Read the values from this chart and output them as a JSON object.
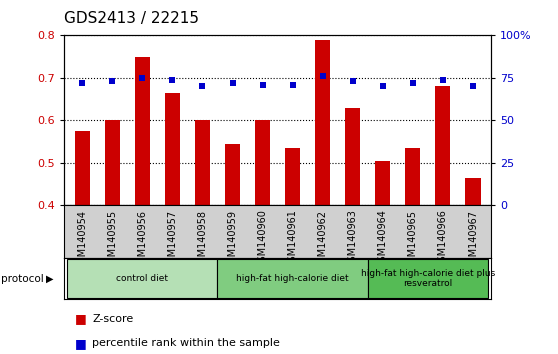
{
  "title": "GDS2413 / 22215",
  "samples": [
    "GSM140954",
    "GSM140955",
    "GSM140956",
    "GSM140957",
    "GSM140958",
    "GSM140959",
    "GSM140960",
    "GSM140961",
    "GSM140962",
    "GSM140963",
    "GSM140964",
    "GSM140965",
    "GSM140966",
    "GSM140967"
  ],
  "zscore": [
    0.575,
    0.6,
    0.75,
    0.665,
    0.6,
    0.545,
    0.6,
    0.535,
    0.79,
    0.63,
    0.505,
    0.535,
    0.68,
    0.465
  ],
  "pctrank": [
    72,
    73,
    75,
    74,
    70,
    72,
    71,
    71,
    76,
    73,
    70,
    72,
    74,
    70
  ],
  "ylim_left": [
    0.4,
    0.8
  ],
  "ylim_right": [
    0,
    100
  ],
  "yticks_left": [
    0.4,
    0.5,
    0.6,
    0.7,
    0.8
  ],
  "yticks_right": [
    0,
    25,
    50,
    75,
    100
  ],
  "bar_color": "#cc0000",
  "dot_color": "#0000cc",
  "groups": [
    {
      "label": "control diet",
      "start": 0,
      "end": 4,
      "color": "#b5e0b5"
    },
    {
      "label": "high-fat high-calorie diet",
      "start": 5,
      "end": 9,
      "color": "#80cc80"
    },
    {
      "label": "high-fat high-calorie diet plus\nresveratrol",
      "start": 10,
      "end": 13,
      "color": "#55bb55"
    }
  ],
  "protocol_label": "protocol",
  "legend_zscore": "Z-score",
  "legend_pct": "percentile rank within the sample",
  "bar_color_hex": "#cc0000",
  "dot_color_hex": "#0000cc",
  "tick_bg_color": "#d0d0d0",
  "plot_bg_color": "#ffffff",
  "grid_color": "#000000",
  "title_fontsize": 11,
  "label_fontsize": 7,
  "axis_fontsize": 8
}
